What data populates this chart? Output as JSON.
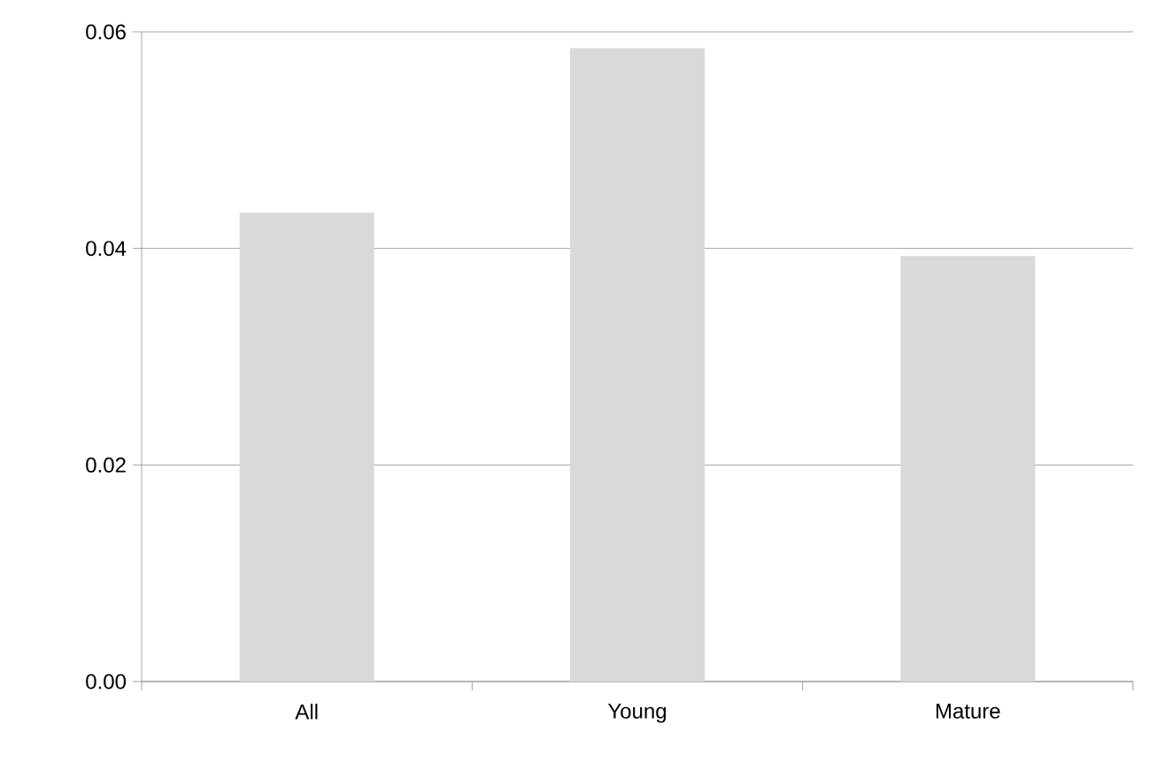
{
  "chart_data": {
    "type": "bar",
    "categories": [
      "All",
      "Young",
      "Mature"
    ],
    "values": [
      0.0433,
      0.0585,
      0.0393
    ],
    "color": "#d9d9d9",
    "ylim": [
      0,
      0.06
    ],
    "yticks": [
      {
        "value": 0,
        "label": "0.00"
      },
      {
        "value": 0.02,
        "label": "0.02"
      },
      {
        "value": 0.04,
        "label": "0.04"
      },
      {
        "value": 0.06,
        "label": "0.06"
      }
    ],
    "grid": "y"
  }
}
